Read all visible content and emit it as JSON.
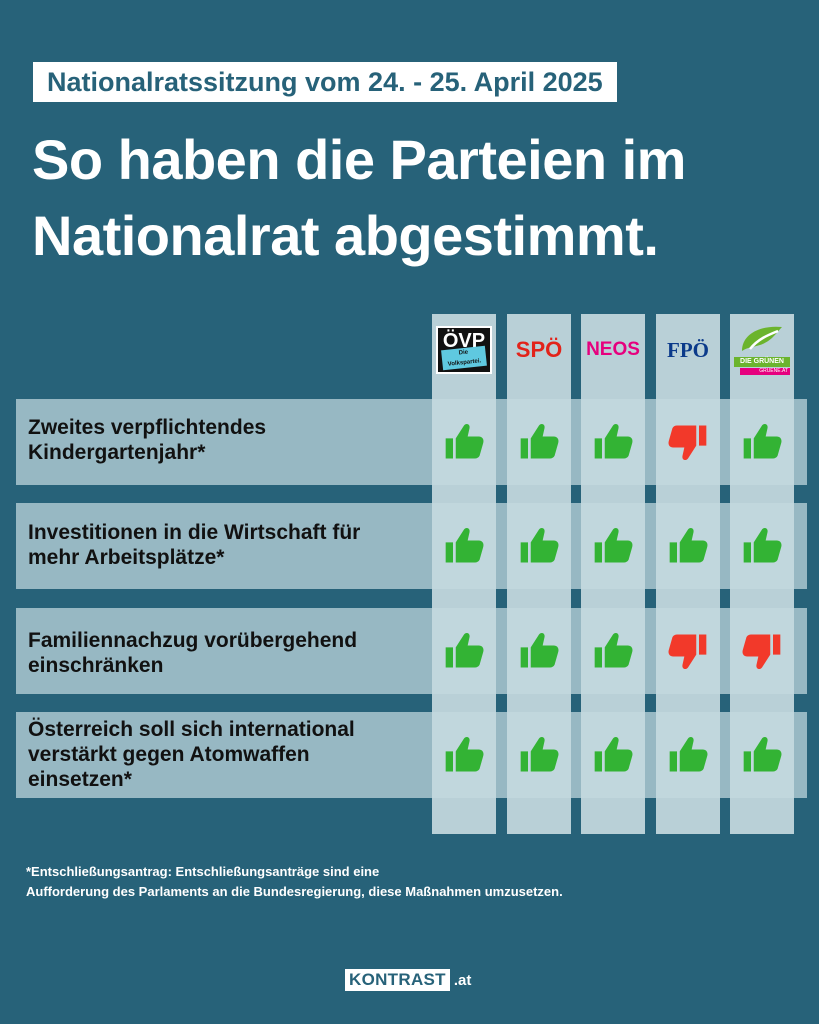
{
  "header": {
    "subtitle": "Nationalratssitzung vom 24. - 25. April 2025",
    "headline": "So haben die Parteien im Nationalrat abgestimmt."
  },
  "parties": [
    {
      "name": "ÖVP",
      "tagline": "Die Volkspartei.",
      "color": "#111111"
    },
    {
      "name": "SPÖ",
      "color": "#e2231a"
    },
    {
      "name": "NEOS",
      "color": "#e6007e"
    },
    {
      "name": "FPÖ",
      "color": "#0b3a8a"
    },
    {
      "name": "DIE GRÜNEN",
      "sub": "GRUENE.AT",
      "color": "#6bb42d"
    }
  ],
  "motions": [
    {
      "title": "Zweites verpflichtendes Kindergartenjahr*",
      "votes": [
        "yes",
        "yes",
        "yes",
        "no",
        "yes"
      ]
    },
    {
      "title": "Investitionen in die Wirtschaft für mehr Arbeitsplätze*",
      "votes": [
        "yes",
        "yes",
        "yes",
        "yes",
        "yes"
      ]
    },
    {
      "title": "Familiennachzug vorübergehend einschränken",
      "votes": [
        "yes",
        "yes",
        "yes",
        "no",
        "no"
      ]
    },
    {
      "title": "Österreich soll sich international verstärkt gegen Atomwaffen einsetzen*",
      "votes": [
        "yes",
        "yes",
        "yes",
        "yes",
        "yes"
      ]
    }
  ],
  "vote_colors": {
    "yes": "#33b334",
    "no": "#f2392a"
  },
  "icons": {
    "yes": "thumbs-up-icon",
    "no": "thumbs-down-icon"
  },
  "footnote": {
    "line1": "*Entschließungsantrag: Entschließungsanträge sind eine",
    "line2": "Aufforderung des Parlaments an die Bundesregierung, diese Maßnahmen umzusetzen."
  },
  "brand": {
    "name": "KONTRAST",
    "tld": ".at"
  }
}
